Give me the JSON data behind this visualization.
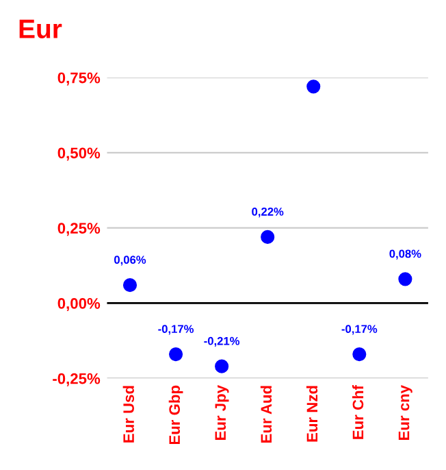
{
  "chart_data": {
    "type": "scatter",
    "title": "Eur",
    "categories": [
      "Eur Usd",
      "Eur Gbp",
      "Eur Jpy",
      "Eur Aud",
      "Eur Nzd",
      "Eur Chf",
      "Eur cny"
    ],
    "series": [
      {
        "color": "#0000ff",
        "values": [
          0.06,
          -0.17,
          -0.21,
          0.22,
          0.72,
          -0.17,
          0.08
        ],
        "value_labels": [
          "0,06%",
          "-0,17%",
          "-0,21%",
          "0,22%",
          null,
          "-0,17%",
          "0,08%"
        ]
      }
    ],
    "ylim": [
      -0.25,
      0.75
    ],
    "yticks": [
      {
        "value": -0.25,
        "label": "-0,25%"
      },
      {
        "value": 0,
        "label": "0,00%"
      },
      {
        "value": 0.25,
        "label": "0,25%"
      },
      {
        "value": 0.5,
        "label": "0,50%"
      },
      {
        "value": 0.75,
        "label": "0,75%"
      }
    ],
    "ref_lines": [
      {
        "axis": "y",
        "value": 0,
        "color": "#000000"
      }
    ],
    "grid": "y",
    "marker": "circle",
    "legend": false
  }
}
